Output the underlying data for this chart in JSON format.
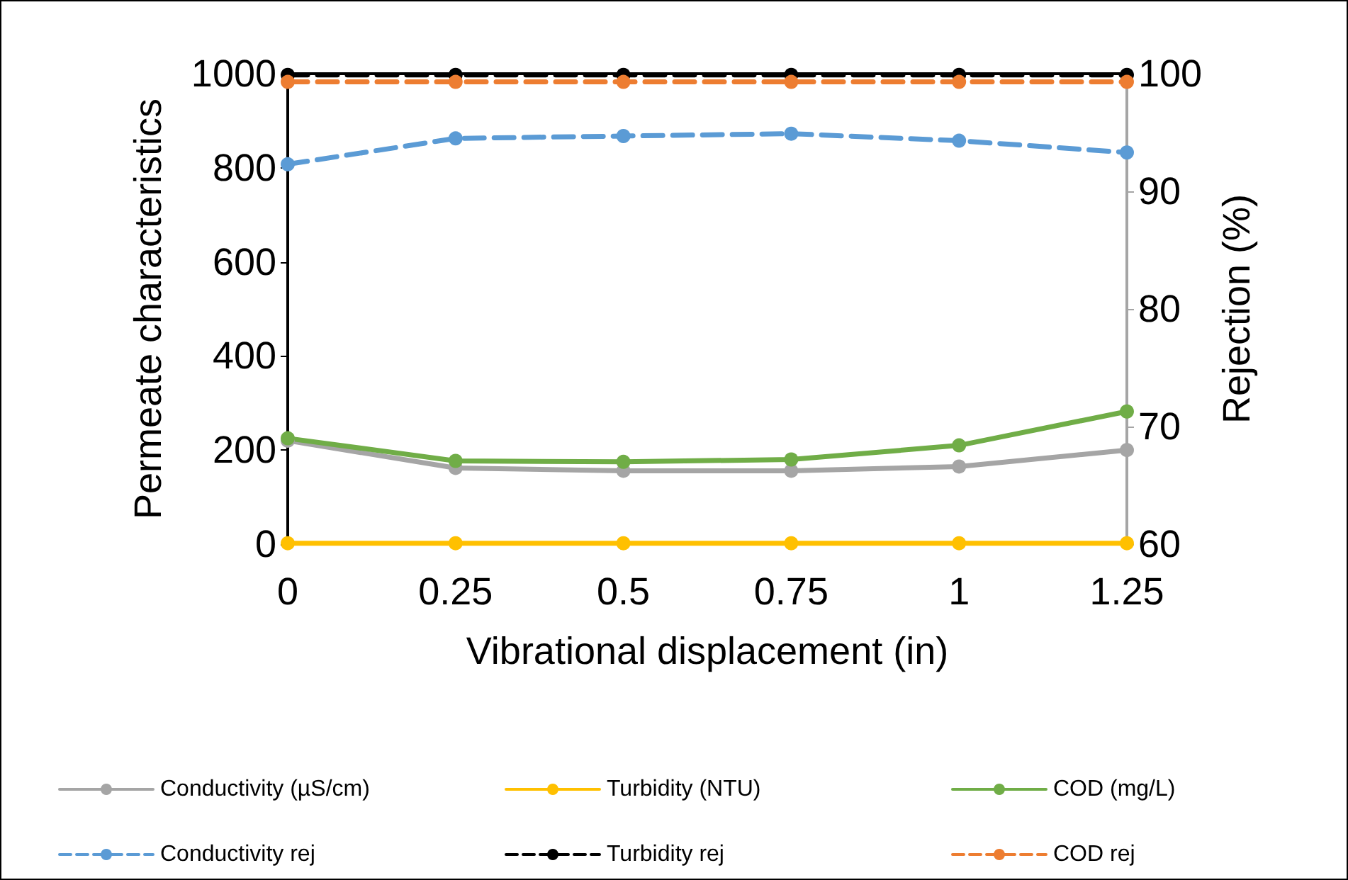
{
  "chart_data": {
    "type": "line",
    "xlabel": "Vibrational displacement (in)",
    "ylabel": "Permeate characteristics",
    "y2label": "Rejection (%)",
    "categories": [
      "0",
      "0.25",
      "0.5",
      "0.75",
      "1",
      "1.25"
    ],
    "series": [
      {
        "name": "Conductivity (µS/cm)",
        "color": "#a5a5a5",
        "values": [
          220,
          162,
          156,
          156,
          165,
          200
        ]
      },
      {
        "name": "Turbidity (NTU)",
        "color": "#ffc000",
        "values": [
          2,
          2,
          2,
          2,
          2,
          2
        ]
      },
      {
        "name": "COD (mg/L)",
        "color": "#70ad47",
        "values": [
          225,
          177,
          175,
          180,
          210,
          282
        ]
      },
      {
        "name": "Conductivity rej",
        "color": "#5b9bd5",
        "axis": "y2",
        "line_style": "dashed",
        "values": [
          92.3,
          94.5,
          94.7,
          94.9,
          94.3,
          93.3
        ]
      },
      {
        "name": "Turbidity rej",
        "color": "#000000",
        "axis": "y2",
        "line_style": "dashed",
        "values": [
          99.9,
          99.9,
          99.9,
          99.9,
          99.9,
          99.9
        ]
      },
      {
        "name": "COD rej",
        "color": "#ed7d31",
        "axis": "y2",
        "line_style": "dashed",
        "values": [
          99.3,
          99.3,
          99.3,
          99.3,
          99.3,
          99.3
        ]
      }
    ],
    "ylim": [
      0,
      1000
    ],
    "yticks": [
      0,
      200,
      400,
      600,
      800,
      1000
    ],
    "y2lim": [
      60,
      100
    ],
    "y2ticks": [
      60,
      70,
      80,
      90,
      100
    ],
    "grid": false,
    "legend": "bottom",
    "marker": "circle",
    "line_style": "solid"
  }
}
